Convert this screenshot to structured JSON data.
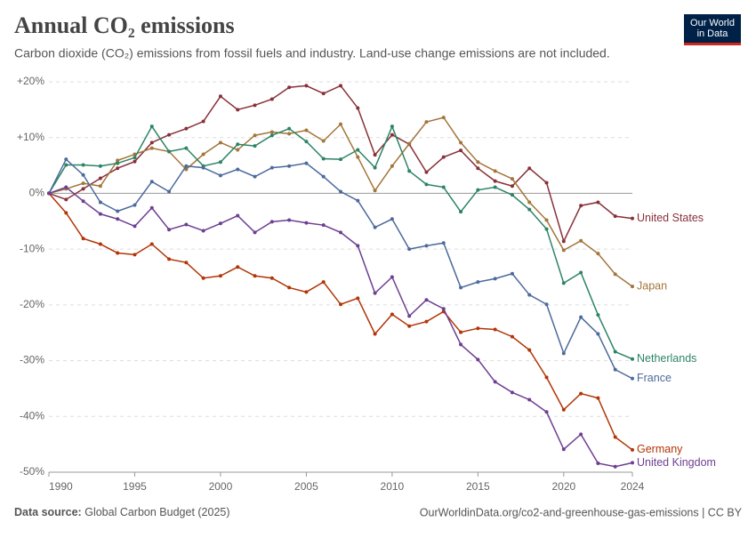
{
  "chart_data": {
    "type": "line",
    "title": "Annual CO₂ emissions",
    "subtitle": "Carbon dioxide (CO₂) emissions from fossil fuels and industry. Land-use change emissions are not included.",
    "logo": "Our World in Data",
    "source_label": "Data source:",
    "source": "Global Carbon Budget (2025)",
    "credit": "OurWorldinData.org/co2-and-greenhouse-gas-emissions | CC BY",
    "x": [
      1990,
      1991,
      1992,
      1993,
      1994,
      1995,
      1996,
      1997,
      1998,
      1999,
      2000,
      2001,
      2002,
      2003,
      2004,
      2005,
      2006,
      2007,
      2008,
      2009,
      2010,
      2011,
      2012,
      2013,
      2014,
      2015,
      2016,
      2017,
      2018,
      2019,
      2020,
      2021,
      2022,
      2023,
      2024
    ],
    "xlim": [
      1990,
      2024
    ],
    "xticks": [
      1990,
      1995,
      2000,
      2005,
      2010,
      2015,
      2020,
      2024
    ],
    "ylim": [
      -50,
      20
    ],
    "yticks": [
      {
        "value": -50,
        "label": "-50%"
      },
      {
        "value": -40,
        "label": "-40%"
      },
      {
        "value": -30,
        "label": "-30%"
      },
      {
        "value": -20,
        "label": "-20%"
      },
      {
        "value": -10,
        "label": "-10%"
      },
      {
        "value": 0,
        "label": "0%"
      },
      {
        "value": 10,
        "label": "+10%"
      },
      {
        "value": 20,
        "label": "+20%"
      }
    ],
    "grid": true,
    "series": [
      {
        "name": "United States",
        "color": "#883039",
        "values": [
          0,
          -1.1,
          0.8,
          2.7,
          4.5,
          5.7,
          9.1,
          10.5,
          11.6,
          12.9,
          17.4,
          15.0,
          15.8,
          16.9,
          19.0,
          19.3,
          17.9,
          19.3,
          15.3,
          6.9,
          10.5,
          8.8,
          3.8,
          6.5,
          7.7,
          4.5,
          2.2,
          1.3,
          4.5,
          1.9,
          -8.6,
          -2.2,
          -1.6,
          -4.1,
          -4.5
        ]
      },
      {
        "name": "Japan",
        "color": "#a2753a",
        "values": [
          0,
          0.8,
          1.8,
          1.3,
          5.9,
          7.0,
          8.1,
          7.5,
          4.3,
          7.0,
          9.1,
          7.8,
          10.4,
          11.0,
          10.7,
          11.3,
          9.4,
          12.4,
          6.5,
          0.5,
          4.9,
          8.9,
          12.8,
          13.6,
          9.1,
          5.6,
          4.0,
          2.6,
          -1.6,
          -4.8,
          -10.2,
          -8.5,
          -10.8,
          -14.5,
          -16.7
        ]
      },
      {
        "name": "Netherlands",
        "color": "#2c8465",
        "values": [
          0,
          5.1,
          5.1,
          4.9,
          5.4,
          6.4,
          12.0,
          7.5,
          8.1,
          4.9,
          5.6,
          8.8,
          8.5,
          10.4,
          11.6,
          9.3,
          6.2,
          6.1,
          7.8,
          4.6,
          12.0,
          4.0,
          1.6,
          1.1,
          -3.3,
          0.6,
          1.1,
          -0.3,
          -2.9,
          -6.4,
          -16.1,
          -14.2,
          -21.8,
          -28.4,
          -29.7
        ]
      },
      {
        "name": "France",
        "color": "#4c6a9c",
        "values": [
          0,
          6.1,
          3.3,
          -1.6,
          -3.2,
          -2.1,
          2.1,
          0.3,
          4.9,
          4.6,
          3.2,
          4.3,
          3.0,
          4.6,
          4.9,
          5.4,
          3.0,
          0.3,
          -1.3,
          -6.1,
          -4.6,
          -10.0,
          -9.4,
          -8.9,
          -16.9,
          -15.9,
          -15.3,
          -14.4,
          -18.2,
          -19.9,
          -28.7,
          -22.2,
          -25.2,
          -31.6,
          -33.2
        ]
      },
      {
        "name": "Germany",
        "color": "#b13507",
        "values": [
          0,
          -3.5,
          -8.1,
          -9.1,
          -10.7,
          -11.0,
          -9.1,
          -11.8,
          -12.4,
          -15.2,
          -14.8,
          -13.2,
          -14.8,
          -15.2,
          -16.9,
          -17.7,
          -15.9,
          -19.9,
          -18.8,
          -25.2,
          -21.7,
          -23.8,
          -23.0,
          -21.2,
          -24.9,
          -24.2,
          -24.4,
          -25.7,
          -28.1,
          -33.0,
          -38.8,
          -35.9,
          -36.7,
          -43.7,
          -46.0
        ]
      },
      {
        "name": "United Kingdom",
        "color": "#6d3e91",
        "values": [
          0,
          1.1,
          -1.4,
          -3.7,
          -4.6,
          -5.9,
          -2.6,
          -6.5,
          -5.6,
          -6.7,
          -5.4,
          -4.0,
          -7.0,
          -5.1,
          -4.8,
          -5.3,
          -5.7,
          -7.0,
          -9.4,
          -17.9,
          -15.0,
          -22.0,
          -19.1,
          -20.7,
          -27.1,
          -29.8,
          -33.8,
          -35.7,
          -37.0,
          -39.2,
          -45.9,
          -43.2,
          -48.4,
          -49.0,
          -48.3
        ]
      }
    ]
  }
}
